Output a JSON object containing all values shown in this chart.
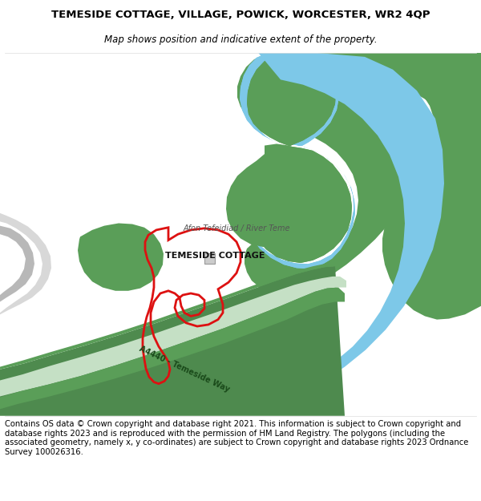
{
  "title": "TEMESIDE COTTAGE, VILLAGE, POWICK, WORCESTER, WR2 4QP",
  "subtitle": "Map shows position and indicative extent of the property.",
  "copyright_text": "Contains OS data © Crown copyright and database right 2021. This information is subject to Crown copyright and database rights 2023 and is reproduced with the permission of HM Land Registry. The polygons (including the associated geometry, namely x, y co-ordinates) are subject to Crown copyright and database rights 2023 Ordnance Survey 100026316.",
  "bg_color": "#ffffff",
  "river_blue": "#7dc8e8",
  "river_green": "#5a9e58",
  "road_dark_green": "#4e8a4e",
  "road_light_green": "#c5e0c5",
  "road_label_color": "#2a5a2a",
  "gray_light": "#d8d8d8",
  "gray_mid": "#b8b8b8",
  "plot_red": "#dd1111",
  "label_river": "Afon Tefeidiad / River Teme",
  "label_cottage": "TEMESIDE COTTAGE",
  "label_road": "A4440 - Temeside Way",
  "title_fontsize": 9.5,
  "subtitle_fontsize": 8.5,
  "copyright_fontsize": 7.2
}
